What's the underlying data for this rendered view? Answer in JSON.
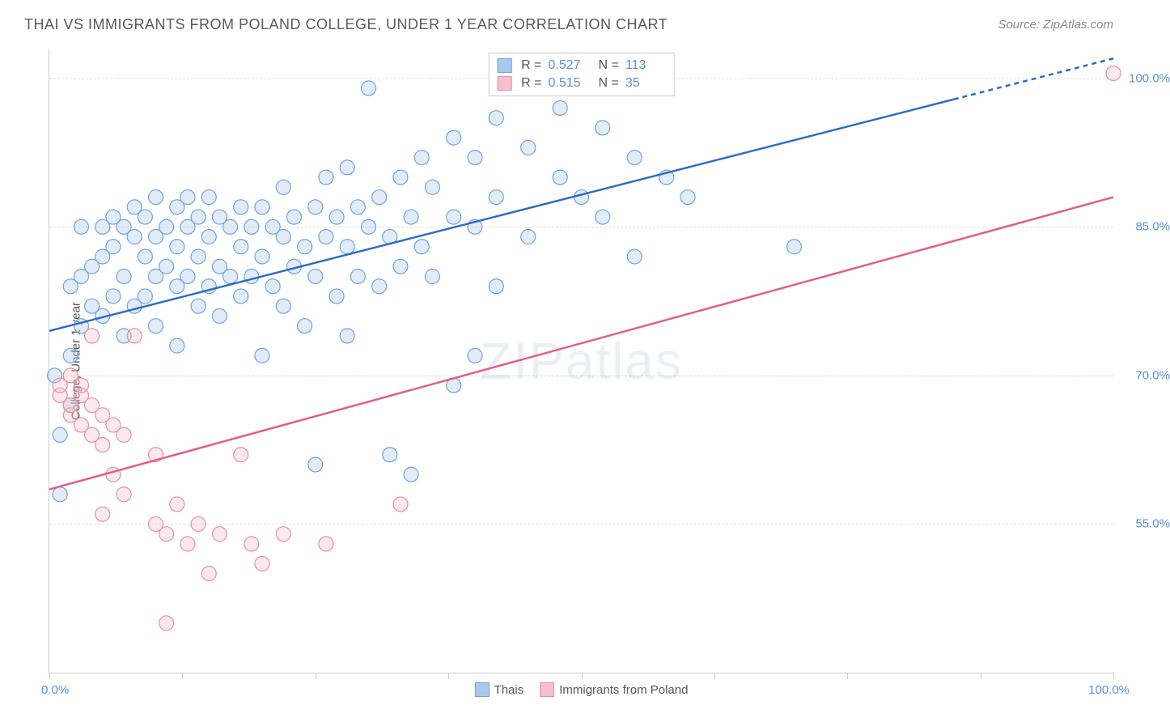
{
  "title": "THAI VS IMMIGRANTS FROM POLAND COLLEGE, UNDER 1 YEAR CORRELATION CHART",
  "source": "Source: ZipAtlas.com",
  "watermark": "ZIPatlas",
  "chart": {
    "type": "scatter",
    "y_axis_title": "College, Under 1 year",
    "xlim": [
      0,
      100
    ],
    "ylim": [
      40,
      103
    ],
    "x_ticks": [
      0,
      12.5,
      25,
      37.5,
      50,
      62.5,
      75,
      87.5,
      100
    ],
    "y_gridlines": [
      55,
      70,
      85,
      100
    ],
    "y_labels": [
      "55.0%",
      "70.0%",
      "85.0%",
      "100.0%"
    ],
    "x_label_min": "0.0%",
    "x_label_max": "100.0%",
    "background_color": "#ffffff",
    "grid_color": "#dddddd",
    "axis_color": "#cccccc",
    "label_color": "#5b8fd6",
    "marker_radius": 9,
    "marker_fill_opacity": 0.35,
    "marker_stroke_width": 1.2,
    "line_width": 2.5,
    "series": [
      {
        "name": "Thais",
        "color_fill": "#a8c8ec",
        "color_stroke": "#6fa3dd",
        "line_color": "#2d6bc4",
        "R": "0.527",
        "N": "113",
        "reg_line": {
          "x1": 0,
          "y1": 74.5,
          "x2": 100,
          "y2": 102.0,
          "dash_from_x": 85
        },
        "points": [
          [
            1,
            64
          ],
          [
            1,
            58
          ],
          [
            0.5,
            70
          ],
          [
            2,
            67
          ],
          [
            2,
            72
          ],
          [
            2,
            79
          ],
          [
            3,
            75
          ],
          [
            3,
            80
          ],
          [
            3,
            85
          ],
          [
            4,
            77
          ],
          [
            4,
            81
          ],
          [
            5,
            76
          ],
          [
            5,
            82
          ],
          [
            5,
            85
          ],
          [
            6,
            78
          ],
          [
            6,
            83
          ],
          [
            6,
            86
          ],
          [
            7,
            74
          ],
          [
            7,
            80
          ],
          [
            7,
            85
          ],
          [
            8,
            77
          ],
          [
            8,
            84
          ],
          [
            8,
            87
          ],
          [
            9,
            78
          ],
          [
            9,
            82
          ],
          [
            9,
            86
          ],
          [
            10,
            75
          ],
          [
            10,
            80
          ],
          [
            10,
            84
          ],
          [
            10,
            88
          ],
          [
            11,
            81
          ],
          [
            11,
            85
          ],
          [
            12,
            73
          ],
          [
            12,
            79
          ],
          [
            12,
            83
          ],
          [
            12,
            87
          ],
          [
            13,
            80
          ],
          [
            13,
            85
          ],
          [
            13,
            88
          ],
          [
            14,
            77
          ],
          [
            14,
            82
          ],
          [
            14,
            86
          ],
          [
            15,
            79
          ],
          [
            15,
            84
          ],
          [
            15,
            88
          ],
          [
            16,
            76
          ],
          [
            16,
            81
          ],
          [
            16,
            86
          ],
          [
            17,
            80
          ],
          [
            17,
            85
          ],
          [
            18,
            78
          ],
          [
            18,
            83
          ],
          [
            18,
            87
          ],
          [
            19,
            80
          ],
          [
            19,
            85
          ],
          [
            20,
            72
          ],
          [
            20,
            82
          ],
          [
            20,
            87
          ],
          [
            21,
            79
          ],
          [
            21,
            85
          ],
          [
            22,
            77
          ],
          [
            22,
            84
          ],
          [
            22,
            89
          ],
          [
            23,
            81
          ],
          [
            23,
            86
          ],
          [
            24,
            75
          ],
          [
            24,
            83
          ],
          [
            25,
            61
          ],
          [
            25,
            80
          ],
          [
            25,
            87
          ],
          [
            26,
            84
          ],
          [
            26,
            90
          ],
          [
            27,
            78
          ],
          [
            27,
            86
          ],
          [
            28,
            74
          ],
          [
            28,
            83
          ],
          [
            28,
            91
          ],
          [
            29,
            80
          ],
          [
            29,
            87
          ],
          [
            30,
            85
          ],
          [
            30,
            99
          ],
          [
            31,
            79
          ],
          [
            31,
            88
          ],
          [
            32,
            62
          ],
          [
            32,
            84
          ],
          [
            33,
            81
          ],
          [
            33,
            90
          ],
          [
            34,
            60
          ],
          [
            34,
            86
          ],
          [
            35,
            83
          ],
          [
            35,
            92
          ],
          [
            36,
            80
          ],
          [
            36,
            89
          ],
          [
            38,
            69
          ],
          [
            38,
            86
          ],
          [
            38,
            94
          ],
          [
            40,
            72
          ],
          [
            40,
            85
          ],
          [
            40,
            92
          ],
          [
            42,
            79
          ],
          [
            42,
            88
          ],
          [
            42,
            96
          ],
          [
            45,
            84
          ],
          [
            45,
            93
          ],
          [
            48,
            90
          ],
          [
            48,
            97
          ],
          [
            50,
            88
          ],
          [
            52,
            86
          ],
          [
            52,
            95
          ],
          [
            55,
            82
          ],
          [
            55,
            92
          ],
          [
            58,
            90
          ],
          [
            60,
            88
          ],
          [
            70,
            83
          ]
        ]
      },
      {
        "name": "Immigrants from Poland",
        "color_fill": "#f4c0cb",
        "color_stroke": "#e88fa5",
        "line_color": "#e15f84",
        "R": "0.515",
        "N": "35",
        "reg_line": {
          "x1": 0,
          "y1": 58.5,
          "x2": 100,
          "y2": 88.0
        },
        "points": [
          [
            1,
            68
          ],
          [
            1,
            69
          ],
          [
            2,
            66
          ],
          [
            2,
            70
          ],
          [
            2,
            67
          ],
          [
            3,
            65
          ],
          [
            3,
            68
          ],
          [
            3,
            69
          ],
          [
            4,
            64
          ],
          [
            4,
            67
          ],
          [
            4,
            74
          ],
          [
            5,
            56
          ],
          [
            5,
            63
          ],
          [
            5,
            66
          ],
          [
            6,
            60
          ],
          [
            6,
            65
          ],
          [
            7,
            58
          ],
          [
            7,
            64
          ],
          [
            8,
            74
          ],
          [
            10,
            55
          ],
          [
            10,
            62
          ],
          [
            11,
            45
          ],
          [
            11,
            54
          ],
          [
            12,
            57
          ],
          [
            13,
            53
          ],
          [
            14,
            55
          ],
          [
            15,
            50
          ],
          [
            16,
            54
          ],
          [
            18,
            62
          ],
          [
            19,
            53
          ],
          [
            20,
            51
          ],
          [
            22,
            54
          ],
          [
            26,
            53
          ],
          [
            33,
            57
          ],
          [
            100,
            100.5
          ]
        ]
      }
    ]
  },
  "legend_top": {
    "r_label": "R =",
    "n_label": "N ="
  },
  "legend_bottom": [
    {
      "label": "Thais",
      "fill": "#a8c8ec",
      "stroke": "#6fa3dd"
    },
    {
      "label": "Immigrants from Poland",
      "fill": "#f4c0cb",
      "stroke": "#e88fa5"
    }
  ]
}
